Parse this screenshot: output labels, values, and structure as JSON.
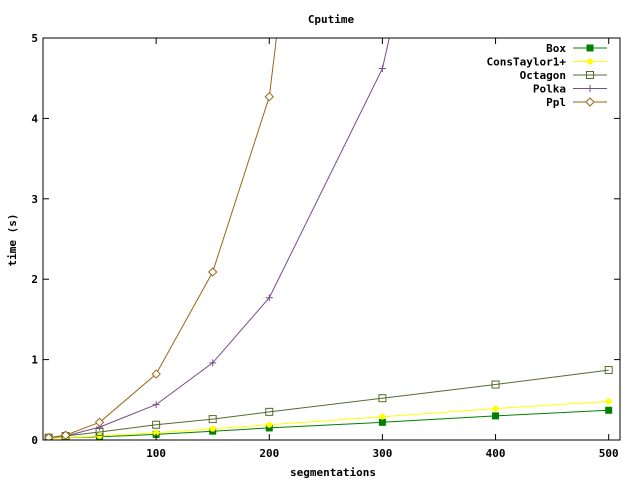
{
  "chart_data": {
    "type": "line",
    "title": "Cputime",
    "xlabel": "segmentations",
    "ylabel": "time (s)",
    "xlim": [
      0,
      510
    ],
    "ylim": [
      0,
      5
    ],
    "xticks": [
      100,
      200,
      300,
      400,
      500
    ],
    "yticks": [
      0,
      1,
      2,
      3,
      4,
      5
    ],
    "grid": false,
    "legend_position": "top-right",
    "series": [
      {
        "name": "Box",
        "color": "#008000",
        "marker": "filled-square",
        "x": [
          5,
          20,
          50,
          100,
          150,
          200,
          300,
          400,
          500
        ],
        "y": [
          0.02,
          0.03,
          0.04,
          0.07,
          0.11,
          0.15,
          0.22,
          0.3,
          0.37
        ]
      },
      {
        "name": "ConsTaylor1+",
        "color": "#ffff00",
        "marker": "filled-circle",
        "x": [
          5,
          20,
          50,
          100,
          150,
          200,
          300,
          400,
          500
        ],
        "y": [
          0.02,
          0.03,
          0.05,
          0.09,
          0.14,
          0.19,
          0.29,
          0.39,
          0.48
        ]
      },
      {
        "name": "Octagon",
        "color": "#556b2f",
        "marker": "open-square",
        "x": [
          5,
          20,
          50,
          100,
          150,
          200,
          300,
          400,
          500
        ],
        "y": [
          0.03,
          0.05,
          0.1,
          0.19,
          0.26,
          0.35,
          0.52,
          0.69,
          0.87
        ]
      },
      {
        "name": "Polka",
        "color": "#7a4a8a",
        "marker": "plus",
        "x": [
          5,
          20,
          50,
          100,
          150,
          200,
          300,
          330
        ],
        "y": [
          0.03,
          0.05,
          0.16,
          0.44,
          0.96,
          1.77,
          4.62,
          6.5
        ]
      },
      {
        "name": "Ppl",
        "color": "#996515",
        "marker": "open-diamond",
        "x": [
          5,
          20,
          50,
          100,
          150,
          200,
          215
        ],
        "y": [
          0.03,
          0.06,
          0.22,
          0.82,
          2.09,
          4.27,
          6.0
        ]
      }
    ]
  }
}
